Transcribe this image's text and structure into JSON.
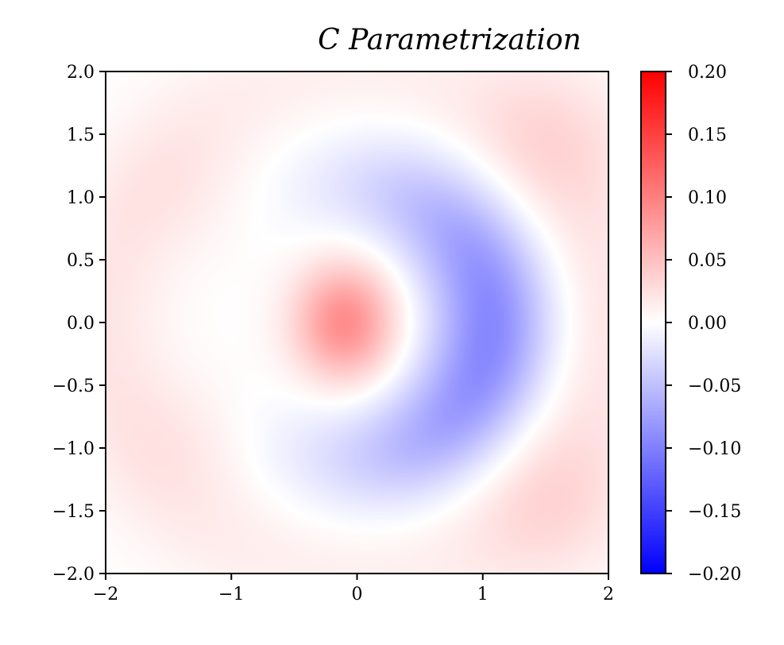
{
  "chart_data": {
    "type": "heatmap",
    "title": "C Parametrization",
    "xlabel": "",
    "ylabel": "",
    "xlim": [
      -2,
      2
    ],
    "ylim": [
      -2,
      2
    ],
    "x_ticks": [
      {
        "value": -2,
        "label": "−2"
      },
      {
        "value": -1,
        "label": "−1"
      },
      {
        "value": 0,
        "label": "0"
      },
      {
        "value": 1,
        "label": "1"
      },
      {
        "value": 2,
        "label": "2"
      }
    ],
    "y_ticks": [
      {
        "value": 2.0,
        "label": "2.0"
      },
      {
        "value": 1.5,
        "label": "1.5"
      },
      {
        "value": 1.0,
        "label": "1.0"
      },
      {
        "value": 0.5,
        "label": "0.5"
      },
      {
        "value": 0.0,
        "label": "0.0"
      },
      {
        "value": -0.5,
        "label": "−0.5"
      },
      {
        "value": -1.0,
        "label": "−1.0"
      },
      {
        "value": -1.5,
        "label": "−1.5"
      },
      {
        "value": -2.0,
        "label": "−2.0"
      }
    ],
    "colorbar": {
      "colormap": "bwr",
      "vmin": -0.2,
      "vmax": 0.2,
      "low_color": "#0000ff",
      "mid_color": "#ffffff",
      "high_color": "#ff0000",
      "ticks": [
        {
          "value": 0.2,
          "label": "0.20"
        },
        {
          "value": 0.15,
          "label": "0.15"
        },
        {
          "value": 0.1,
          "label": "0.10"
        },
        {
          "value": 0.05,
          "label": "0.05"
        },
        {
          "value": 0.0,
          "label": "0.00"
        },
        {
          "value": -0.05,
          "label": "−0.05"
        },
        {
          "value": -0.1,
          "label": "−0.10"
        },
        {
          "value": -0.15,
          "label": "−0.15"
        },
        {
          "value": -0.2,
          "label": "−0.20"
        }
      ]
    },
    "features": [
      {
        "kind": "positive-lobe",
        "center": [
          -0.1,
          0.0
        ],
        "peak_value": 0.09
      },
      {
        "kind": "negative-crescent",
        "center": [
          1.0,
          -0.1
        ],
        "peak_value": -0.09
      },
      {
        "kind": "faint-positive-ring",
        "value_approx": 0.02
      }
    ],
    "grid": false,
    "legend": "none"
  }
}
